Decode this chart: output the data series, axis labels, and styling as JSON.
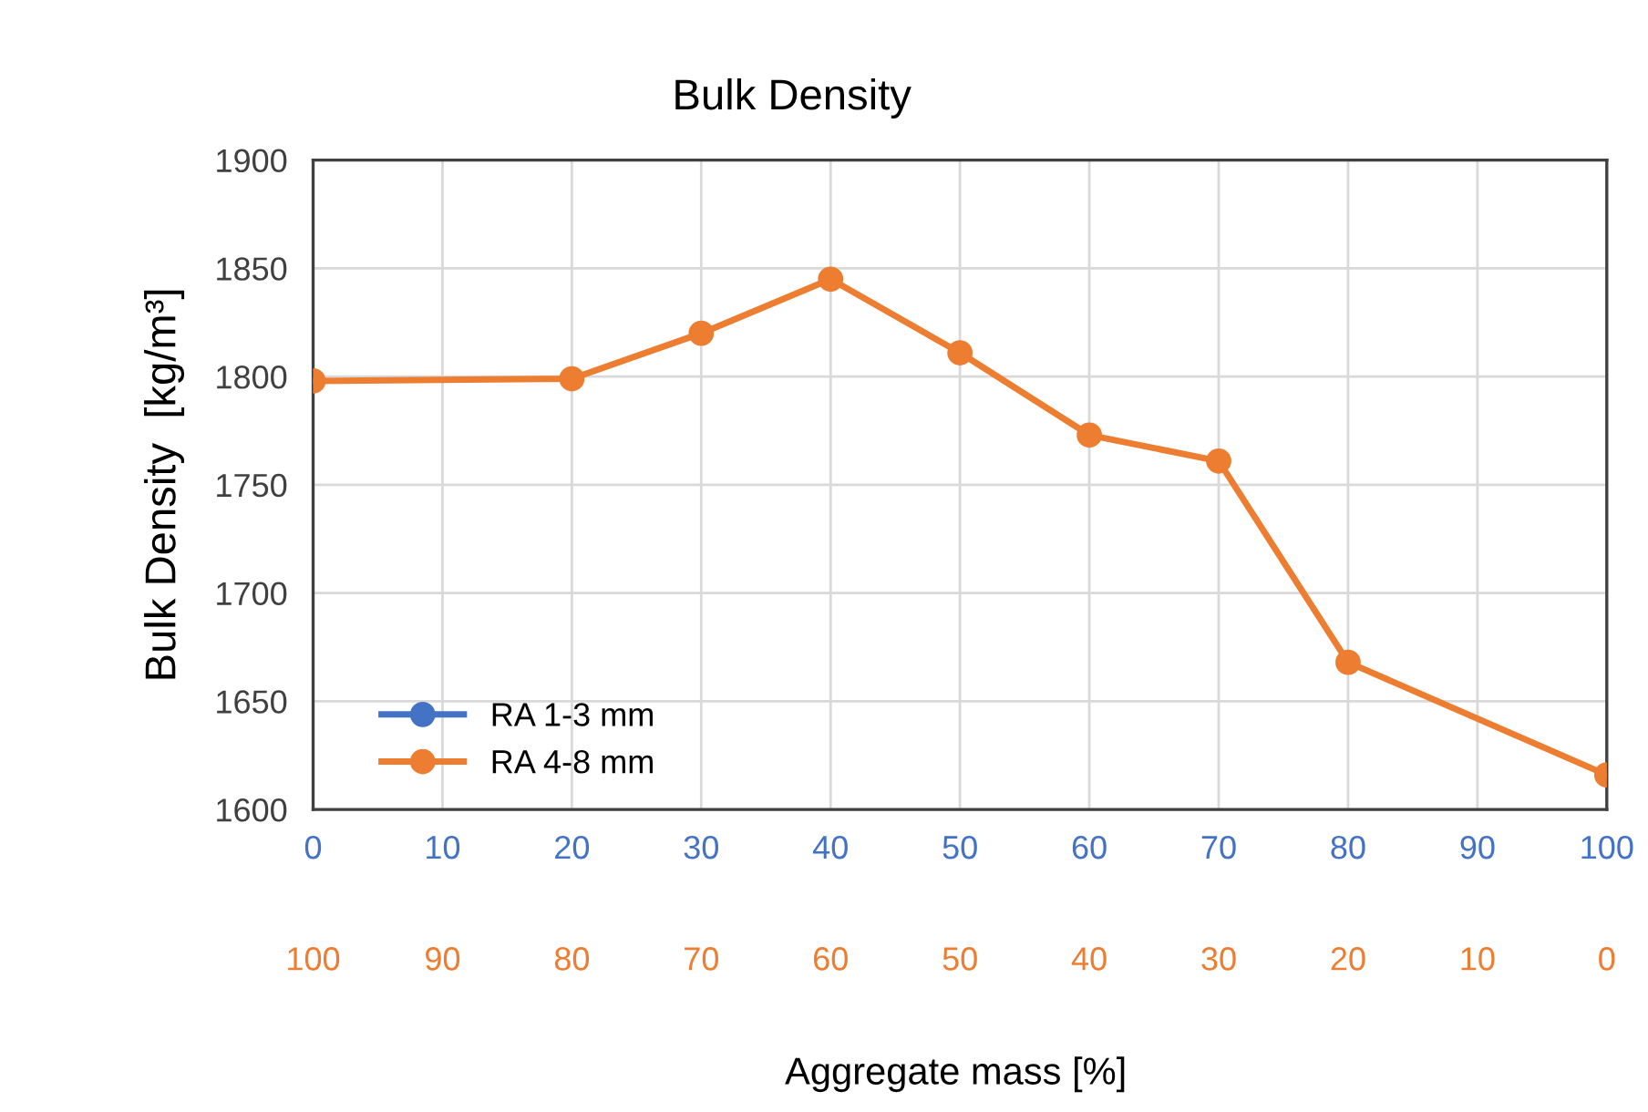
{
  "chart_data": {
    "type": "line",
    "title": "Bulk Density",
    "xlabel": "Aggregate mass [%]",
    "ylabel": "Bulk Density  [kg/m³]",
    "x": [
      0,
      20,
      30,
      40,
      50,
      60,
      70,
      80,
      100
    ],
    "series": [
      {
        "name": "RA 1-3 mm",
        "color": "#4472c4",
        "values": [
          null,
          null,
          null,
          null,
          null,
          null,
          null,
          null,
          null
        ]
      },
      {
        "name": "RA 4-8 mm",
        "color": "#ed7d31",
        "values": [
          1798,
          1799,
          1820,
          1845,
          1811,
          1773,
          1761,
          1668,
          1616
        ]
      }
    ],
    "xlim": [
      0,
      100
    ],
    "xticks": [
      0,
      10,
      20,
      30,
      40,
      50,
      60,
      70,
      80,
      90,
      100
    ],
    "x2lim": [
      100,
      0
    ],
    "x2ticks": [
      100,
      90,
      80,
      70,
      60,
      50,
      40,
      30,
      20,
      10,
      0
    ],
    "ylim": [
      1600,
      1900
    ],
    "yticks": [
      1600,
      1650,
      1700,
      1750,
      1800,
      1850,
      1900
    ],
    "grid": true,
    "legend": "bottom left",
    "marker": "circle",
    "line_style": "solid"
  }
}
